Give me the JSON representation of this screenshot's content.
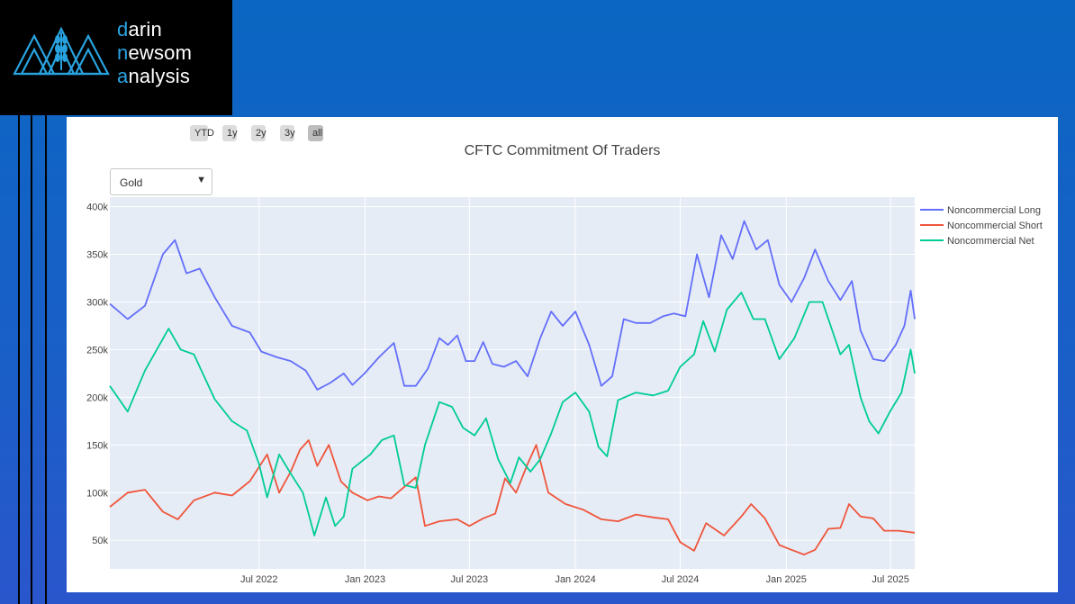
{
  "logo": {
    "lines": [
      {
        "first": "d",
        "rest": "arin"
      },
      {
        "first": "n",
        "rest": "ewsom"
      },
      {
        "first": "a",
        "rest": "nalysis"
      }
    ]
  },
  "range_buttons": [
    "YTD",
    "1y",
    "2y",
    "3y",
    "all"
  ],
  "active_range": "all",
  "dropdown": {
    "selected": "Gold"
  },
  "colors": {
    "long": "#636efa",
    "short": "#ef553b",
    "net": "#00cc96",
    "plot_bg": "#e5ecf6",
    "accent": "#29a3e0"
  },
  "chart_data": {
    "type": "line",
    "title": "CFTC Commitment Of Traders",
    "xlabel": "",
    "ylabel": "",
    "x_range": [
      "2021-10-15",
      "2025-08-12"
    ],
    "ylim": [
      20000,
      410000
    ],
    "y_ticks": [
      50000,
      100000,
      150000,
      200000,
      250000,
      300000,
      350000,
      400000
    ],
    "y_tick_labels": [
      "50k",
      "100k",
      "150k",
      "200k",
      "250k",
      "300k",
      "350k",
      "400k"
    ],
    "x_ticks": [
      "2022-07-01",
      "2023-01-01",
      "2023-07-01",
      "2024-01-01",
      "2024-07-01",
      "2025-01-01",
      "2025-07-01"
    ],
    "x_tick_labels": [
      "Jul 2022",
      "Jan 2023",
      "Jul 2023",
      "Jan 2024",
      "Jul 2024",
      "Jan 2025",
      "Jul 2025"
    ],
    "grid": true,
    "legend_position": "right",
    "series": [
      {
        "name": "Noncommercial Long",
        "points": [
          [
            "2021-10-15",
            298000
          ],
          [
            "2021-11-15",
            282000
          ],
          [
            "2021-12-15",
            296000
          ],
          [
            "2022-01-15",
            350000
          ],
          [
            "2022-02-05",
            365000
          ],
          [
            "2022-02-25",
            330000
          ],
          [
            "2022-03-20",
            335000
          ],
          [
            "2022-04-15",
            305000
          ],
          [
            "2022-05-15",
            275000
          ],
          [
            "2022-06-15",
            268000
          ],
          [
            "2022-07-05",
            248000
          ],
          [
            "2022-08-01",
            242000
          ],
          [
            "2022-08-25",
            238000
          ],
          [
            "2022-09-20",
            228000
          ],
          [
            "2022-10-10",
            208000
          ],
          [
            "2022-11-01",
            215000
          ],
          [
            "2022-11-25",
            225000
          ],
          [
            "2022-12-10",
            213000
          ],
          [
            "2022-12-31",
            225000
          ],
          [
            "2023-01-25",
            242000
          ],
          [
            "2023-02-20",
            257000
          ],
          [
            "2023-03-10",
            212000
          ],
          [
            "2023-03-30",
            212000
          ],
          [
            "2023-04-20",
            230000
          ],
          [
            "2023-05-10",
            262000
          ],
          [
            "2023-05-25",
            255000
          ],
          [
            "2023-06-10",
            265000
          ],
          [
            "2023-06-25",
            238000
          ],
          [
            "2023-07-10",
            238000
          ],
          [
            "2023-07-25",
            258000
          ],
          [
            "2023-08-10",
            235000
          ],
          [
            "2023-08-30",
            232000
          ],
          [
            "2023-09-20",
            238000
          ],
          [
            "2023-10-10",
            222000
          ],
          [
            "2023-11-01",
            262000
          ],
          [
            "2023-11-20",
            290000
          ],
          [
            "2023-12-10",
            275000
          ],
          [
            "2024-01-01",
            290000
          ],
          [
            "2024-01-25",
            255000
          ],
          [
            "2024-02-15",
            212000
          ],
          [
            "2024-03-05",
            222000
          ],
          [
            "2024-03-25",
            282000
          ],
          [
            "2024-04-15",
            278000
          ],
          [
            "2024-05-10",
            278000
          ],
          [
            "2024-06-01",
            285000
          ],
          [
            "2024-06-20",
            288000
          ],
          [
            "2024-07-10",
            285000
          ],
          [
            "2024-07-30",
            350000
          ],
          [
            "2024-08-20",
            305000
          ],
          [
            "2024-09-10",
            370000
          ],
          [
            "2024-09-30",
            345000
          ],
          [
            "2024-10-20",
            385000
          ],
          [
            "2024-11-10",
            355000
          ],
          [
            "2024-11-30",
            365000
          ],
          [
            "2024-12-20",
            318000
          ],
          [
            "2025-01-10",
            300000
          ],
          [
            "2025-02-01",
            325000
          ],
          [
            "2025-02-20",
            355000
          ],
          [
            "2025-03-15",
            322000
          ],
          [
            "2025-04-05",
            302000
          ],
          [
            "2025-04-25",
            322000
          ],
          [
            "2025-05-10",
            270000
          ],
          [
            "2025-06-01",
            240000
          ],
          [
            "2025-06-20",
            238000
          ],
          [
            "2025-07-10",
            255000
          ],
          [
            "2025-07-25",
            275000
          ],
          [
            "2025-08-05",
            312000
          ],
          [
            "2025-08-12",
            282000
          ]
        ]
      },
      {
        "name": "Noncommercial Short",
        "points": [
          [
            "2021-10-15",
            85000
          ],
          [
            "2021-11-15",
            100000
          ],
          [
            "2021-12-15",
            103000
          ],
          [
            "2022-01-15",
            80000
          ],
          [
            "2022-02-10",
            72000
          ],
          [
            "2022-03-10",
            92000
          ],
          [
            "2022-04-15",
            100000
          ],
          [
            "2022-05-15",
            97000
          ],
          [
            "2022-06-15",
            112000
          ],
          [
            "2022-07-15",
            140000
          ],
          [
            "2022-08-05",
            100000
          ],
          [
            "2022-08-25",
            122000
          ],
          [
            "2022-09-10",
            145000
          ],
          [
            "2022-09-25",
            155000
          ],
          [
            "2022-10-10",
            128000
          ],
          [
            "2022-10-30",
            150000
          ],
          [
            "2022-11-20",
            112000
          ],
          [
            "2022-12-10",
            100000
          ],
          [
            "2023-01-05",
            92000
          ],
          [
            "2023-01-25",
            96000
          ],
          [
            "2023-02-15",
            94000
          ],
          [
            "2023-03-10",
            106000
          ],
          [
            "2023-03-30",
            116000
          ],
          [
            "2023-04-15",
            65000
          ],
          [
            "2023-05-10",
            70000
          ],
          [
            "2023-06-10",
            72000
          ],
          [
            "2023-07-01",
            65000
          ],
          [
            "2023-07-25",
            73000
          ],
          [
            "2023-08-15",
            78000
          ],
          [
            "2023-09-01",
            115000
          ],
          [
            "2023-09-20",
            100000
          ],
          [
            "2023-10-10",
            130000
          ],
          [
            "2023-10-25",
            150000
          ],
          [
            "2023-11-15",
            100000
          ],
          [
            "2023-12-15",
            88000
          ],
          [
            "2024-01-15",
            82000
          ],
          [
            "2024-02-15",
            72000
          ],
          [
            "2024-03-15",
            70000
          ],
          [
            "2024-04-15",
            77000
          ],
          [
            "2024-05-15",
            74000
          ],
          [
            "2024-06-10",
            72000
          ],
          [
            "2024-07-01",
            48000
          ],
          [
            "2024-07-25",
            39000
          ],
          [
            "2024-08-15",
            68000
          ],
          [
            "2024-09-15",
            55000
          ],
          [
            "2024-10-15",
            75000
          ],
          [
            "2024-11-01",
            88000
          ],
          [
            "2024-11-25",
            73000
          ],
          [
            "2024-12-20",
            45000
          ],
          [
            "2025-01-10",
            40000
          ],
          [
            "2025-02-01",
            35000
          ],
          [
            "2025-02-20",
            40000
          ],
          [
            "2025-03-15",
            62000
          ],
          [
            "2025-04-05",
            63000
          ],
          [
            "2025-04-20",
            88000
          ],
          [
            "2025-05-10",
            75000
          ],
          [
            "2025-06-01",
            73000
          ],
          [
            "2025-06-20",
            60000
          ],
          [
            "2025-07-15",
            60000
          ],
          [
            "2025-08-12",
            58000
          ]
        ]
      },
      {
        "name": "Noncommercial Net",
        "points": [
          [
            "2021-10-15",
            212000
          ],
          [
            "2021-11-15",
            185000
          ],
          [
            "2021-12-15",
            228000
          ],
          [
            "2022-01-25",
            272000
          ],
          [
            "2022-02-15",
            250000
          ],
          [
            "2022-03-10",
            245000
          ],
          [
            "2022-04-15",
            198000
          ],
          [
            "2022-05-15",
            175000
          ],
          [
            "2022-06-10",
            165000
          ],
          [
            "2022-07-01",
            130000
          ],
          [
            "2022-07-15",
            95000
          ],
          [
            "2022-08-05",
            140000
          ],
          [
            "2022-08-25",
            120000
          ],
          [
            "2022-09-15",
            100000
          ],
          [
            "2022-10-05",
            55000
          ],
          [
            "2022-10-25",
            95000
          ],
          [
            "2022-11-10",
            65000
          ],
          [
            "2022-11-25",
            75000
          ],
          [
            "2022-12-10",
            125000
          ],
          [
            "2023-01-10",
            140000
          ],
          [
            "2023-01-30",
            155000
          ],
          [
            "2023-02-20",
            160000
          ],
          [
            "2023-03-10",
            108000
          ],
          [
            "2023-03-30",
            105000
          ],
          [
            "2023-04-15",
            150000
          ],
          [
            "2023-05-10",
            195000
          ],
          [
            "2023-06-01",
            190000
          ],
          [
            "2023-06-20",
            168000
          ],
          [
            "2023-07-10",
            160000
          ],
          [
            "2023-07-30",
            178000
          ],
          [
            "2023-08-20",
            135000
          ],
          [
            "2023-09-10",
            110000
          ],
          [
            "2023-09-25",
            137000
          ],
          [
            "2023-10-15",
            122000
          ],
          [
            "2023-11-01",
            135000
          ],
          [
            "2023-11-20",
            162000
          ],
          [
            "2023-12-10",
            195000
          ],
          [
            "2024-01-01",
            205000
          ],
          [
            "2024-01-25",
            185000
          ],
          [
            "2024-02-10",
            148000
          ],
          [
            "2024-02-25",
            138000
          ],
          [
            "2024-03-15",
            197000
          ],
          [
            "2024-04-15",
            205000
          ],
          [
            "2024-05-15",
            202000
          ],
          [
            "2024-06-10",
            207000
          ],
          [
            "2024-07-01",
            232000
          ],
          [
            "2024-07-25",
            245000
          ],
          [
            "2024-08-10",
            280000
          ],
          [
            "2024-08-30",
            248000
          ],
          [
            "2024-09-20",
            292000
          ],
          [
            "2024-10-15",
            310000
          ],
          [
            "2024-11-05",
            282000
          ],
          [
            "2024-11-25",
            282000
          ],
          [
            "2024-12-20",
            240000
          ],
          [
            "2025-01-15",
            262000
          ],
          [
            "2025-02-10",
            300000
          ],
          [
            "2025-03-05",
            300000
          ],
          [
            "2025-04-05",
            245000
          ],
          [
            "2025-04-20",
            255000
          ],
          [
            "2025-05-10",
            200000
          ],
          [
            "2025-05-25",
            175000
          ],
          [
            "2025-06-10",
            162000
          ],
          [
            "2025-06-30",
            185000
          ],
          [
            "2025-07-20",
            205000
          ],
          [
            "2025-08-05",
            250000
          ],
          [
            "2025-08-12",
            225000
          ]
        ]
      }
    ]
  }
}
